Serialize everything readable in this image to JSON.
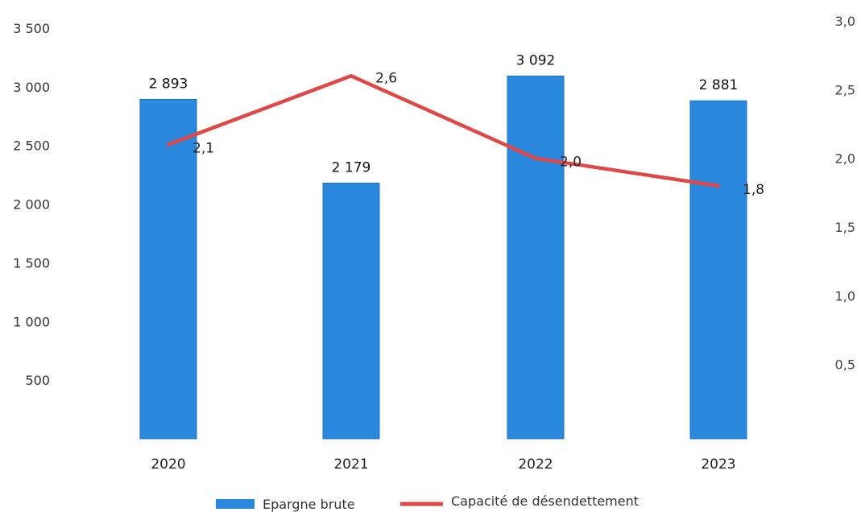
{
  "chart_data": {
    "type": "bar",
    "categories": [
      "2020",
      "2021",
      "2022",
      "2023"
    ],
    "series": [
      {
        "name": "Epargne brute",
        "type": "bar",
        "axis": "left",
        "color": "#2a88dd",
        "values": [
          2893,
          2179,
          3092,
          2881
        ],
        "labels": [
          "2 893",
          "2 179",
          "3 092",
          "2 881"
        ]
      },
      {
        "name": "Capacité de désendettement",
        "type": "line",
        "axis": "right",
        "color": "#e04848",
        "values": [
          2.1,
          2.6,
          2.0,
          1.8
        ],
        "labels": [
          "2,1",
          "2,6",
          "2,0",
          "1,8"
        ]
      }
    ],
    "y_left": {
      "ylim": [
        0,
        3500
      ],
      "ticks": [
        500,
        1000,
        1500,
        2000,
        2500,
        3000,
        3500
      ],
      "tick_labels": [
        "500",
        "1 000",
        "1 500",
        "2 000",
        "2 500",
        "3 000",
        "3 500"
      ]
    },
    "y_right": {
      "ylim": [
        0,
        3.0
      ],
      "ticks": [
        0.5,
        1.0,
        1.5,
        2.0,
        2.5,
        3.0
      ],
      "tick_labels": [
        "0,5",
        "1,0",
        "1,5",
        "2,0",
        "2,5",
        "3,0"
      ]
    },
    "title": "",
    "xlabel": "",
    "legend_position": "bottom",
    "grid": false
  }
}
